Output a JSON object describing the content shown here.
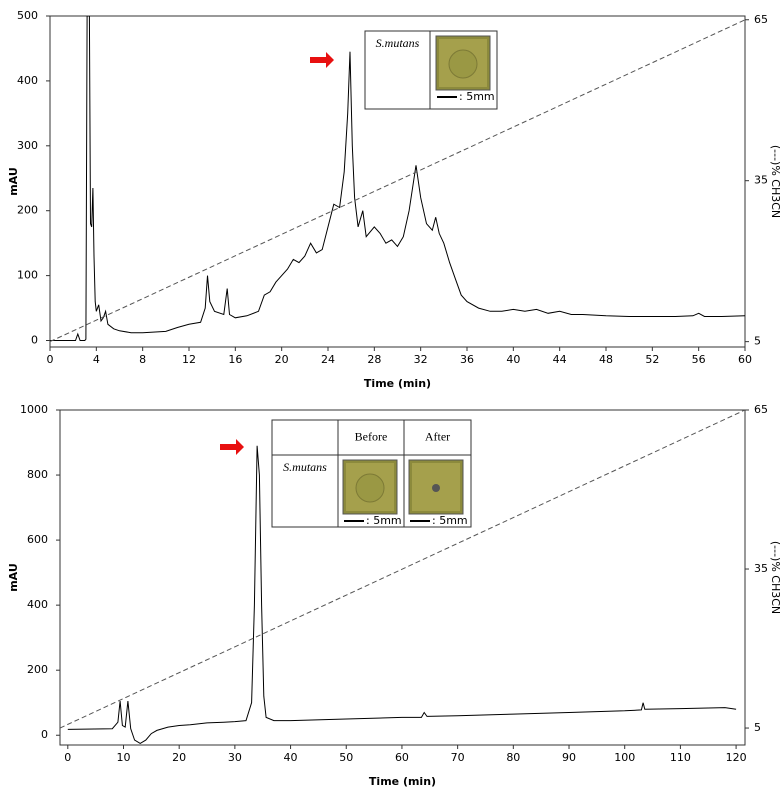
{
  "chart_data": [
    {
      "type": "line",
      "x_label": "Time (min)",
      "y_label": "mAU",
      "y2_label": "(---)% CH3CN",
      "xlim": [
        0,
        60
      ],
      "xticks": [
        0,
        4,
        8,
        12,
        16,
        20,
        24,
        28,
        32,
        36,
        40,
        44,
        48,
        52,
        56,
        60
      ],
      "ylim": [
        -10,
        500
      ],
      "yticks": [
        0,
        100,
        200,
        300,
        400,
        500
      ],
      "y2lim": [
        4,
        65.7
      ],
      "y2ticks": [
        5,
        35,
        65
      ],
      "series": [
        {
          "color": "#000000",
          "x": [
            0,
            2.2,
            2.4,
            2.6,
            3.0,
            3.1,
            3.2,
            3.4,
            3.5,
            3.6,
            3.7,
            3.8,
            3.9,
            4.0,
            4.2,
            4.4,
            4.6,
            4.8,
            5.0,
            5.5,
            6,
            7,
            8,
            10,
            11,
            12,
            13,
            13.4,
            13.6,
            13.8,
            14.2,
            15,
            15.3,
            15.5,
            16,
            17,
            18,
            18.5,
            19,
            19.5,
            20,
            20.5,
            21,
            21.5,
            22,
            22.5,
            23,
            23.5,
            24,
            24.5,
            25,
            25.4,
            25.7,
            25.9,
            26.1,
            26.3,
            26.6,
            27,
            27.3,
            28,
            28.5,
            29,
            29.5,
            30,
            30.5,
            31,
            31.6,
            32,
            32.5,
            33,
            33.3,
            33.6,
            34,
            34.5,
            35,
            35.5,
            36,
            37,
            38,
            39,
            40,
            41,
            42,
            43,
            44,
            45,
            46,
            48,
            50,
            52,
            54,
            55.5,
            56,
            56.5,
            58,
            60
          ],
          "values": [
            0,
            0,
            10,
            0,
            0,
            2,
            500,
            500,
            180,
            175,
            235,
            130,
            60,
            45,
            55,
            30,
            35,
            45,
            25,
            18,
            15,
            12,
            12,
            14,
            20,
            25,
            28,
            50,
            100,
            60,
            45,
            40,
            80,
            40,
            35,
            38,
            45,
            70,
            75,
            90,
            100,
            110,
            125,
            120,
            130,
            150,
            135,
            140,
            175,
            210,
            205,
            260,
            350,
            445,
            300,
            220,
            175,
            200,
            160,
            175,
            165,
            150,
            155,
            145,
            160,
            200,
            270,
            220,
            180,
            170,
            190,
            165,
            150,
            120,
            95,
            70,
            60,
            50,
            45,
            45,
            48,
            45,
            48,
            42,
            45,
            40,
            40,
            38,
            37,
            37,
            37,
            38,
            42,
            37,
            37,
            38
          ]
        },
        {
          "color": "#555555",
          "dashed": true,
          "axis": "y2",
          "x": [
            0,
            60
          ],
          "values": [
            5,
            65
          ]
        }
      ],
      "inset": {
        "row_label": "S.mutans",
        "scale_labels": [
          ": 5mm"
        ]
      }
    },
    {
      "type": "line",
      "x_label": "Time (min)",
      "y_label": "mAU",
      "y2_label": "(---)% CH3CN",
      "xlim": [
        -1.4,
        121.6
      ],
      "xticks": [
        0,
        10,
        20,
        30,
        40,
        50,
        60,
        70,
        80,
        90,
        100,
        110,
        120
      ],
      "ylim": [
        -30,
        1000
      ],
      "yticks": [
        0,
        200,
        400,
        600,
        800,
        1000
      ],
      "y2lim": [
        1.8,
        65
      ],
      "y2ticks": [
        5,
        35,
        65
      ],
      "series": [
        {
          "color": "#000000",
          "x": [
            0,
            8,
            9,
            9.4,
            9.8,
            10.3,
            10.8,
            11.3,
            12,
            13,
            14,
            15,
            16,
            18,
            20,
            22,
            25,
            28,
            30,
            32,
            33,
            33.5,
            34,
            34.4,
            34.8,
            35.2,
            35.6,
            37,
            40,
            50,
            60,
            63.5,
            64,
            64.5,
            70,
            80,
            90,
            100,
            103,
            103.3,
            103.6,
            110,
            118,
            120
          ],
          "values": [
            18,
            20,
            40,
            105,
            30,
            25,
            105,
            20,
            -15,
            -25,
            -15,
            5,
            15,
            25,
            30,
            32,
            38,
            40,
            42,
            45,
            100,
            400,
            890,
            800,
            400,
            120,
            55,
            45,
            45,
            50,
            55,
            55,
            70,
            58,
            60,
            65,
            70,
            75,
            78,
            100,
            80,
            82,
            85,
            80
          ]
        },
        {
          "color": "#555555",
          "dashed": true,
          "axis": "y2",
          "x": [
            -1.4,
            121.6
          ],
          "values": [
            5,
            65
          ]
        }
      ],
      "inset": {
        "columns": [
          "Before",
          "After"
        ],
        "row_label": "S.mutans",
        "scale_labels": [
          ": 5mm",
          ": 5mm"
        ]
      }
    }
  ]
}
